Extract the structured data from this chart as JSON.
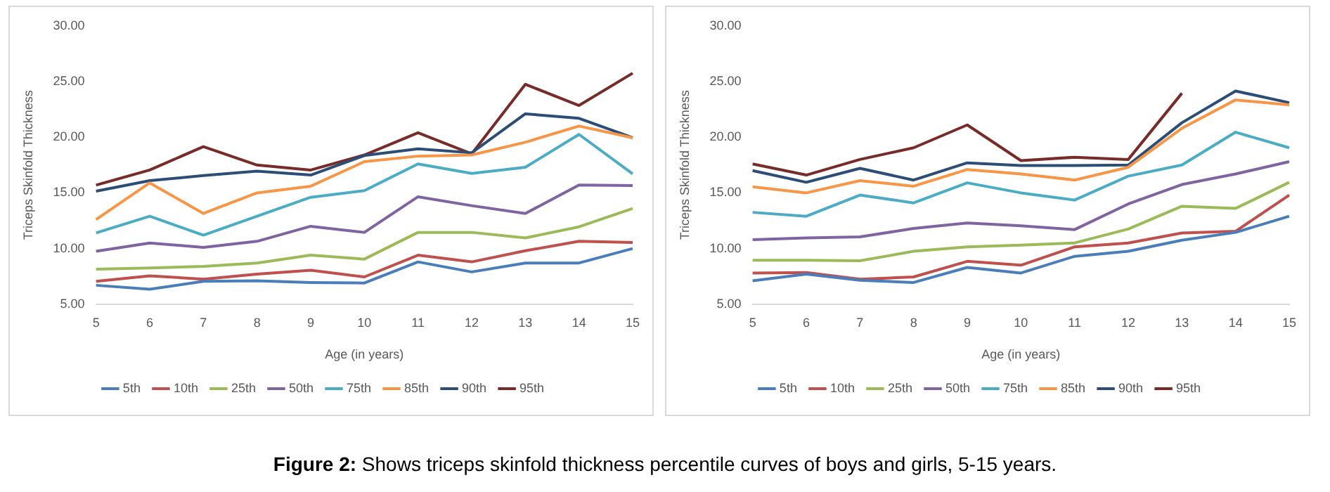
{
  "chart_data": [
    {
      "type": "line",
      "xlabel": "Age (in years)",
      "ylabel": "Triceps Skinfold Thickness",
      "categories": [
        "5",
        "6",
        "7",
        "8",
        "9",
        "10",
        "11",
        "12",
        "13",
        "14",
        "15"
      ],
      "ylim": [
        5,
        30
      ],
      "yticks": [
        {
          "value": 5,
          "label": "5.00"
        },
        {
          "value": 10,
          "label": "10.00"
        },
        {
          "value": 15,
          "label": "15.00"
        },
        {
          "value": 20,
          "label": "20.00"
        },
        {
          "value": 25,
          "label": "25.00"
        },
        {
          "value": 30,
          "label": "30.00"
        }
      ],
      "grid": false,
      "legend": "bottom",
      "marker": "none",
      "line_style": "solid",
      "series": [
        {
          "name": "5th",
          "color": "#4a7ebb",
          "values": [
            6.7,
            6.35,
            7.05,
            7.1,
            6.95,
            6.9,
            8.8,
            7.9,
            8.7,
            8.7,
            10.0
          ]
        },
        {
          "name": "10th",
          "color": "#c0504d",
          "values": [
            7.05,
            7.55,
            7.25,
            7.7,
            8.05,
            7.45,
            9.4,
            8.8,
            9.8,
            10.65,
            10.55
          ]
        },
        {
          "name": "25th",
          "color": "#9bbb59",
          "values": [
            8.15,
            8.25,
            8.4,
            8.7,
            9.4,
            9.05,
            11.45,
            11.45,
            10.95,
            11.95,
            13.6
          ]
        },
        {
          "name": "50th",
          "color": "#8064a2",
          "values": [
            9.75,
            10.5,
            10.1,
            10.65,
            12.0,
            11.45,
            14.65,
            13.85,
            13.15,
            15.7,
            15.65
          ]
        },
        {
          "name": "75th",
          "color": "#4bacc6",
          "values": [
            11.4,
            12.9,
            11.2,
            12.9,
            14.6,
            15.2,
            17.6,
            16.75,
            17.3,
            20.25,
            16.7
          ]
        },
        {
          "name": "85th",
          "color": "#f79646",
          "values": [
            12.6,
            15.9,
            13.15,
            15.0,
            15.6,
            17.8,
            18.3,
            18.4,
            19.55,
            21.0,
            19.95
          ]
        },
        {
          "name": "90th",
          "color": "#2c4d75",
          "values": [
            15.15,
            16.1,
            16.55,
            16.95,
            16.6,
            18.35,
            18.95,
            18.6,
            22.1,
            21.7,
            19.95
          ]
        },
        {
          "name": "95th",
          "color": "#772c2a",
          "values": [
            15.7,
            17.05,
            19.15,
            17.5,
            17.05,
            18.4,
            20.4,
            18.5,
            24.75,
            22.85,
            25.75
          ]
        }
      ]
    },
    {
      "type": "line",
      "xlabel": "Age (in years)",
      "ylabel": "Triceps Skinfold Thickness",
      "categories": [
        "5",
        "6",
        "7",
        "8",
        "9",
        "10",
        "11",
        "12",
        "13",
        "14",
        "15"
      ],
      "ylim": [
        5,
        30
      ],
      "yticks": [
        {
          "value": 5,
          "label": "5.00"
        },
        {
          "value": 10,
          "label": "10.00"
        },
        {
          "value": 15,
          "label": "15.00"
        },
        {
          "value": 20,
          "label": "20.00"
        },
        {
          "value": 25,
          "label": "25.00"
        },
        {
          "value": 30,
          "label": "30.00"
        }
      ],
      "grid": false,
      "legend": "bottom",
      "marker": "none",
      "line_style": "solid",
      "annotations": [
        "Figure 2: Shows triceps skinfold thickness percentile curves of boys and girls, 5-15 years."
      ],
      "series": [
        {
          "name": "5th",
          "color": "#4a7ebb",
          "values": [
            7.1,
            7.7,
            7.15,
            6.95,
            8.3,
            7.8,
            9.3,
            9.75,
            10.75,
            11.45,
            12.9
          ]
        },
        {
          "name": "10th",
          "color": "#c0504d",
          "values": [
            7.8,
            7.85,
            7.25,
            7.45,
            8.85,
            8.5,
            10.15,
            10.5,
            11.4,
            11.55,
            14.8
          ]
        },
        {
          "name": "25th",
          "color": "#9bbb59",
          "values": [
            8.95,
            8.95,
            8.9,
            9.75,
            10.15,
            10.3,
            10.5,
            11.75,
            13.8,
            13.6,
            15.95
          ]
        },
        {
          "name": "50th",
          "color": "#8064a2",
          "values": [
            10.8,
            10.95,
            11.05,
            11.8,
            12.3,
            12.05,
            11.7,
            14.0,
            15.75,
            16.7,
            17.8
          ]
        },
        {
          "name": "75th",
          "color": "#4bacc6",
          "values": [
            13.25,
            12.9,
            14.8,
            14.1,
            15.9,
            15.0,
            14.35,
            16.5,
            17.5,
            20.45,
            19.05
          ]
        },
        {
          "name": "85th",
          "color": "#f79646",
          "values": [
            15.55,
            15.0,
            16.1,
            15.6,
            17.1,
            16.7,
            16.15,
            17.3,
            20.8,
            23.35,
            22.9
          ]
        },
        {
          "name": "90th",
          "color": "#2c4d75",
          "values": [
            17.0,
            15.95,
            17.2,
            16.15,
            17.7,
            17.45,
            17.45,
            17.5,
            21.3,
            24.15,
            23.1
          ]
        },
        {
          "name": "95th",
          "color": "#772c2a",
          "values": [
            17.6,
            16.6,
            18.0,
            19.05,
            21.1,
            17.9,
            18.2,
            18.0,
            23.95,
            null,
            null
          ]
        }
      ]
    }
  ]
}
